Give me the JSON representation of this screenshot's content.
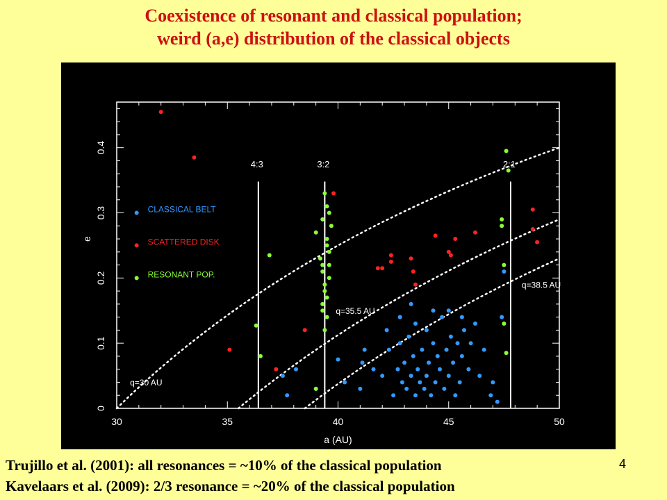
{
  "title": {
    "line1": "Coexistence of resonant and classical population;",
    "line2": "weird (a,e) distribution of the classical objects"
  },
  "captions": {
    "line1": "Trujillo et al. (2001): all resonances = ~10% of the classical population",
    "line2": "Kavelaars et al. (2009): 2/3 resonance = ~20% of the classical population"
  },
  "page_number": "4",
  "chart_data": {
    "type": "scatter",
    "xlabel": "a (AU)",
    "ylabel": "e",
    "xlim": [
      30,
      50
    ],
    "ylim": [
      0,
      0.47
    ],
    "xticks": [
      30,
      35,
      40,
      45,
      50
    ],
    "yticks": [
      0,
      0.1,
      0.2,
      0.3,
      0.4
    ],
    "background": "#000000",
    "legend_position": "left-middle",
    "series": [
      {
        "name": "CLASSICAL BELT",
        "color": "#3399ff",
        "points": [
          [
            37.5,
            0.05
          ],
          [
            37.7,
            0.02
          ],
          [
            38.1,
            0.06
          ],
          [
            39.0,
            0.03
          ],
          [
            40.0,
            0.075
          ],
          [
            40.3,
            0.04
          ],
          [
            41.0,
            0.03
          ],
          [
            41.1,
            0.07
          ],
          [
            41.2,
            0.09
          ],
          [
            41.6,
            0.06
          ],
          [
            42.0,
            0.05
          ],
          [
            42.2,
            0.12
          ],
          [
            42.3,
            0.09
          ],
          [
            42.5,
            0.02
          ],
          [
            42.7,
            0.06
          ],
          [
            42.8,
            0.1
          ],
          [
            42.9,
            0.04
          ],
          [
            43.0,
            0.07
          ],
          [
            43.1,
            0.03
          ],
          [
            43.2,
            0.11
          ],
          [
            43.3,
            0.05
          ],
          [
            43.4,
            0.08
          ],
          [
            43.5,
            0.02
          ],
          [
            43.5,
            0.13
          ],
          [
            43.6,
            0.06
          ],
          [
            43.7,
            0.04
          ],
          [
            43.8,
            0.09
          ],
          [
            43.9,
            0.03
          ],
          [
            44.0,
            0.12
          ],
          [
            44.0,
            0.05
          ],
          [
            44.1,
            0.07
          ],
          [
            44.2,
            0.02
          ],
          [
            44.3,
            0.1
          ],
          [
            44.4,
            0.04
          ],
          [
            44.5,
            0.08
          ],
          [
            44.6,
            0.06
          ],
          [
            44.7,
            0.14
          ],
          [
            44.8,
            0.03
          ],
          [
            44.9,
            0.09
          ],
          [
            45.0,
            0.05
          ],
          [
            45.1,
            0.11
          ],
          [
            45.2,
            0.07
          ],
          [
            45.3,
            0.02
          ],
          [
            45.4,
            0.1
          ],
          [
            45.5,
            0.04
          ],
          [
            45.6,
            0.08
          ],
          [
            45.7,
            0.12
          ],
          [
            45.9,
            0.06
          ],
          [
            46.0,
            0.1
          ],
          [
            46.2,
            0.13
          ],
          [
            46.4,
            0.05
          ],
          [
            46.6,
            0.09
          ],
          [
            46.9,
            0.02
          ],
          [
            47.0,
            0.04
          ],
          [
            47.2,
            0.01
          ],
          [
            47.4,
            0.14
          ],
          [
            47.5,
            0.21
          ],
          [
            43.3,
            0.16
          ],
          [
            42.8,
            0.14
          ],
          [
            44.3,
            0.15
          ],
          [
            45.0,
            0.15
          ],
          [
            45.6,
            0.14
          ]
        ]
      },
      {
        "name": "SCATTERED DISK",
        "color": "#ff2222",
        "points": [
          [
            32.0,
            0.455
          ],
          [
            33.5,
            0.385
          ],
          [
            35.1,
            0.09
          ],
          [
            37.2,
            0.06
          ],
          [
            38.5,
            0.12
          ],
          [
            39.8,
            0.33
          ],
          [
            41.8,
            0.215
          ],
          [
            42.0,
            0.215
          ],
          [
            42.4,
            0.225
          ],
          [
            42.4,
            0.235
          ],
          [
            43.3,
            0.23
          ],
          [
            43.4,
            0.21
          ],
          [
            43.5,
            0.19
          ],
          [
            44.4,
            0.265
          ],
          [
            45.0,
            0.24
          ],
          [
            45.1,
            0.235
          ],
          [
            45.3,
            0.26
          ],
          [
            46.2,
            0.27
          ],
          [
            48.8,
            0.305
          ],
          [
            48.8,
            0.275
          ],
          [
            49.0,
            0.255
          ]
        ]
      },
      {
        "name": "RESONANT POP.",
        "color": "#88ff33",
        "points": [
          [
            36.3,
            0.127
          ],
          [
            36.5,
            0.08
          ],
          [
            36.9,
            0.235
          ],
          [
            39.0,
            0.27
          ],
          [
            39.2,
            0.23
          ],
          [
            39.3,
            0.22
          ],
          [
            39.4,
            0.33
          ],
          [
            39.5,
            0.31
          ],
          [
            39.5,
            0.25
          ],
          [
            39.6,
            0.2
          ],
          [
            39.4,
            0.18
          ],
          [
            39.3,
            0.16
          ],
          [
            39.5,
            0.14
          ],
          [
            39.4,
            0.12
          ],
          [
            39.5,
            0.26
          ],
          [
            39.3,
            0.29
          ],
          [
            39.6,
            0.3
          ],
          [
            39.7,
            0.28
          ],
          [
            39.6,
            0.24
          ],
          [
            39.3,
            0.21
          ],
          [
            39.4,
            0.19
          ],
          [
            39.5,
            0.17
          ],
          [
            39.3,
            0.15
          ],
          [
            39.6,
            0.22
          ],
          [
            47.4,
            0.29
          ],
          [
            47.4,
            0.28
          ],
          [
            47.6,
            0.395
          ],
          [
            47.7,
            0.365
          ],
          [
            47.5,
            0.22
          ],
          [
            47.5,
            0.13
          ],
          [
            47.6,
            0.085
          ],
          [
            39.0,
            0.03
          ]
        ]
      }
    ],
    "resonance_lines": [
      {
        "label": "4:3",
        "a": 36.4
      },
      {
        "label": "3:2",
        "a": 39.4
      },
      {
        "label": "2:1",
        "a": 47.8
      }
    ],
    "perihelion_curves": [
      {
        "label": "q=30 AU",
        "q": 30
      },
      {
        "label": "q=35.5 AU",
        "q": 35.5
      },
      {
        "label": "q=38.5 AU",
        "q": 38.5
      }
    ]
  }
}
